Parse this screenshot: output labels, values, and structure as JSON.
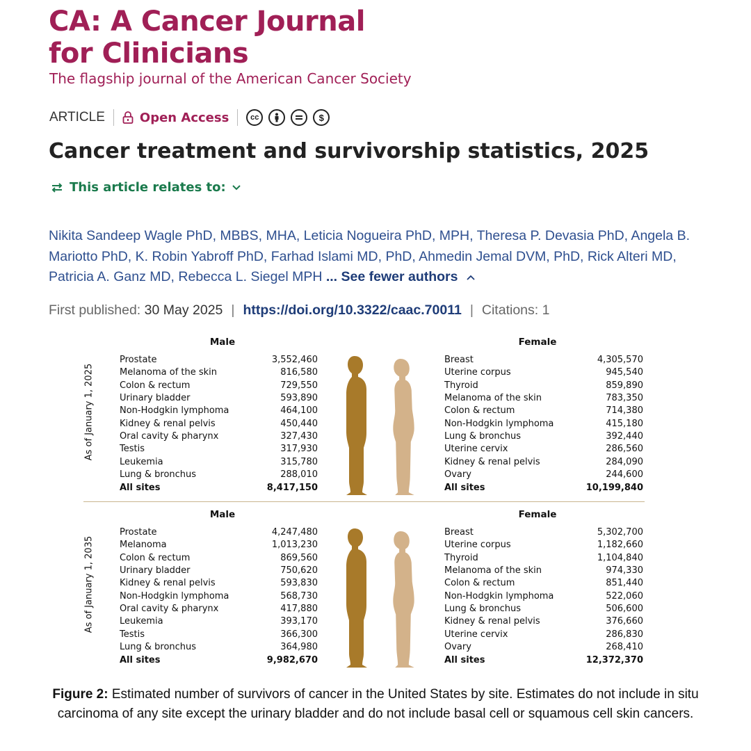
{
  "journal": {
    "title_line1": "CA: A Cancer Journal",
    "title_line2": "for Clinicians",
    "subtitle": "The flagship journal of the American Cancer Society"
  },
  "article_meta": {
    "type": "ARTICLE",
    "access": "Open Access",
    "license_icons": [
      "cc-icon",
      "attribution-icon",
      "no-derivatives-icon",
      "non-commercial-icon"
    ]
  },
  "article": {
    "title": "Cancer treatment and survivorship statistics, 2025",
    "relates_label": "This article relates to:",
    "authors": "Nikita Sandeep Wagle PhD, MBBS, MHA, Leticia Nogueira PhD, MPH, Theresa P. Devasia PhD, Angela B. Mariotto PhD, K. Robin Yabroff PhD, Farhad Islami MD, PhD, Ahmedin Jemal DVM, PhD, Rick Alteri MD, Patricia A. Ganz MD, Rebecca L. Siegel MPH",
    "authors_toggle": "... See fewer authors",
    "published_label": "First published:",
    "published_date": "30 May 2025",
    "doi": "https://doi.org/10.3322/caac.70011",
    "citations": "Citations: 1"
  },
  "figure": {
    "male_header": "Male",
    "female_header": "Female",
    "panels": [
      {
        "label": "As of January 1, 2025",
        "male": [
          [
            "Prostate",
            "3,552,460"
          ],
          [
            "Melanoma of the skin",
            "816,580"
          ],
          [
            "Colon & rectum",
            "729,550"
          ],
          [
            "Urinary bladder",
            "593,890"
          ],
          [
            "Non-Hodgkin lymphoma",
            "464,100"
          ],
          [
            "Kidney & renal pelvis",
            "450,440"
          ],
          [
            "Oral cavity & pharynx",
            "327,430"
          ],
          [
            "Testis",
            "317,930"
          ],
          [
            "Leukemia",
            "315,780"
          ],
          [
            "Lung & bronchus",
            "288,010"
          ],
          [
            "All sites",
            "8,417,150"
          ]
        ],
        "female": [
          [
            "Breast",
            "4,305,570"
          ],
          [
            "Uterine corpus",
            "945,540"
          ],
          [
            "Thyroid",
            "859,890"
          ],
          [
            "Melanoma of the skin",
            "783,350"
          ],
          [
            "Colon & rectum",
            "714,380"
          ],
          [
            "Non-Hodgkin lymphoma",
            "415,180"
          ],
          [
            "Lung & bronchus",
            "392,440"
          ],
          [
            "Uterine cervix",
            "286,560"
          ],
          [
            "Kidney & renal pelvis",
            "284,090"
          ],
          [
            "Ovary",
            "244,600"
          ],
          [
            "All sites",
            "10,199,840"
          ]
        ]
      },
      {
        "label": "As of January 1, 2035",
        "male": [
          [
            "Prostate",
            "4,247,480"
          ],
          [
            "Melanoma",
            "1,013,230"
          ],
          [
            "Colon & rectum",
            "869,560"
          ],
          [
            "Urinary bladder",
            "750,620"
          ],
          [
            "Kidney & renal pelvis",
            "593,830"
          ],
          [
            "Non-Hodgkin lymphoma",
            "568,730"
          ],
          [
            "Oral cavity & pharynx",
            "417,880"
          ],
          [
            "Leukemia",
            "393,170"
          ],
          [
            "Testis",
            "366,300"
          ],
          [
            "Lung & bronchus",
            "364,980"
          ],
          [
            "All sites",
            "9,982,670"
          ]
        ],
        "female": [
          [
            "Breast",
            "5,302,700"
          ],
          [
            "Uterine corpus",
            "1,182,660"
          ],
          [
            "Thyroid",
            "1,104,840"
          ],
          [
            "Melanoma of the skin",
            "974,330"
          ],
          [
            "Colon & rectum",
            "851,440"
          ],
          [
            "Non-Hodgkin lymphoma",
            "522,060"
          ],
          [
            "Lung & bronchus",
            "506,600"
          ],
          [
            "Kidney & renal pelvis",
            "376,660"
          ],
          [
            "Uterine cervix",
            "286,830"
          ],
          [
            "Ovary",
            "268,410"
          ],
          [
            "All sites",
            "12,372,370"
          ]
        ]
      }
    ],
    "colors": {
      "male": "#a87a2a",
      "female": "#d3b28a"
    }
  },
  "caption": {
    "label": "Figure 2:",
    "text": " Estimated number of survivors of cancer in the United States by site. Estimates do not include in situ carcinoma of any site except the urinary bladder and do not include basal cell or squamous cell skin cancers."
  }
}
